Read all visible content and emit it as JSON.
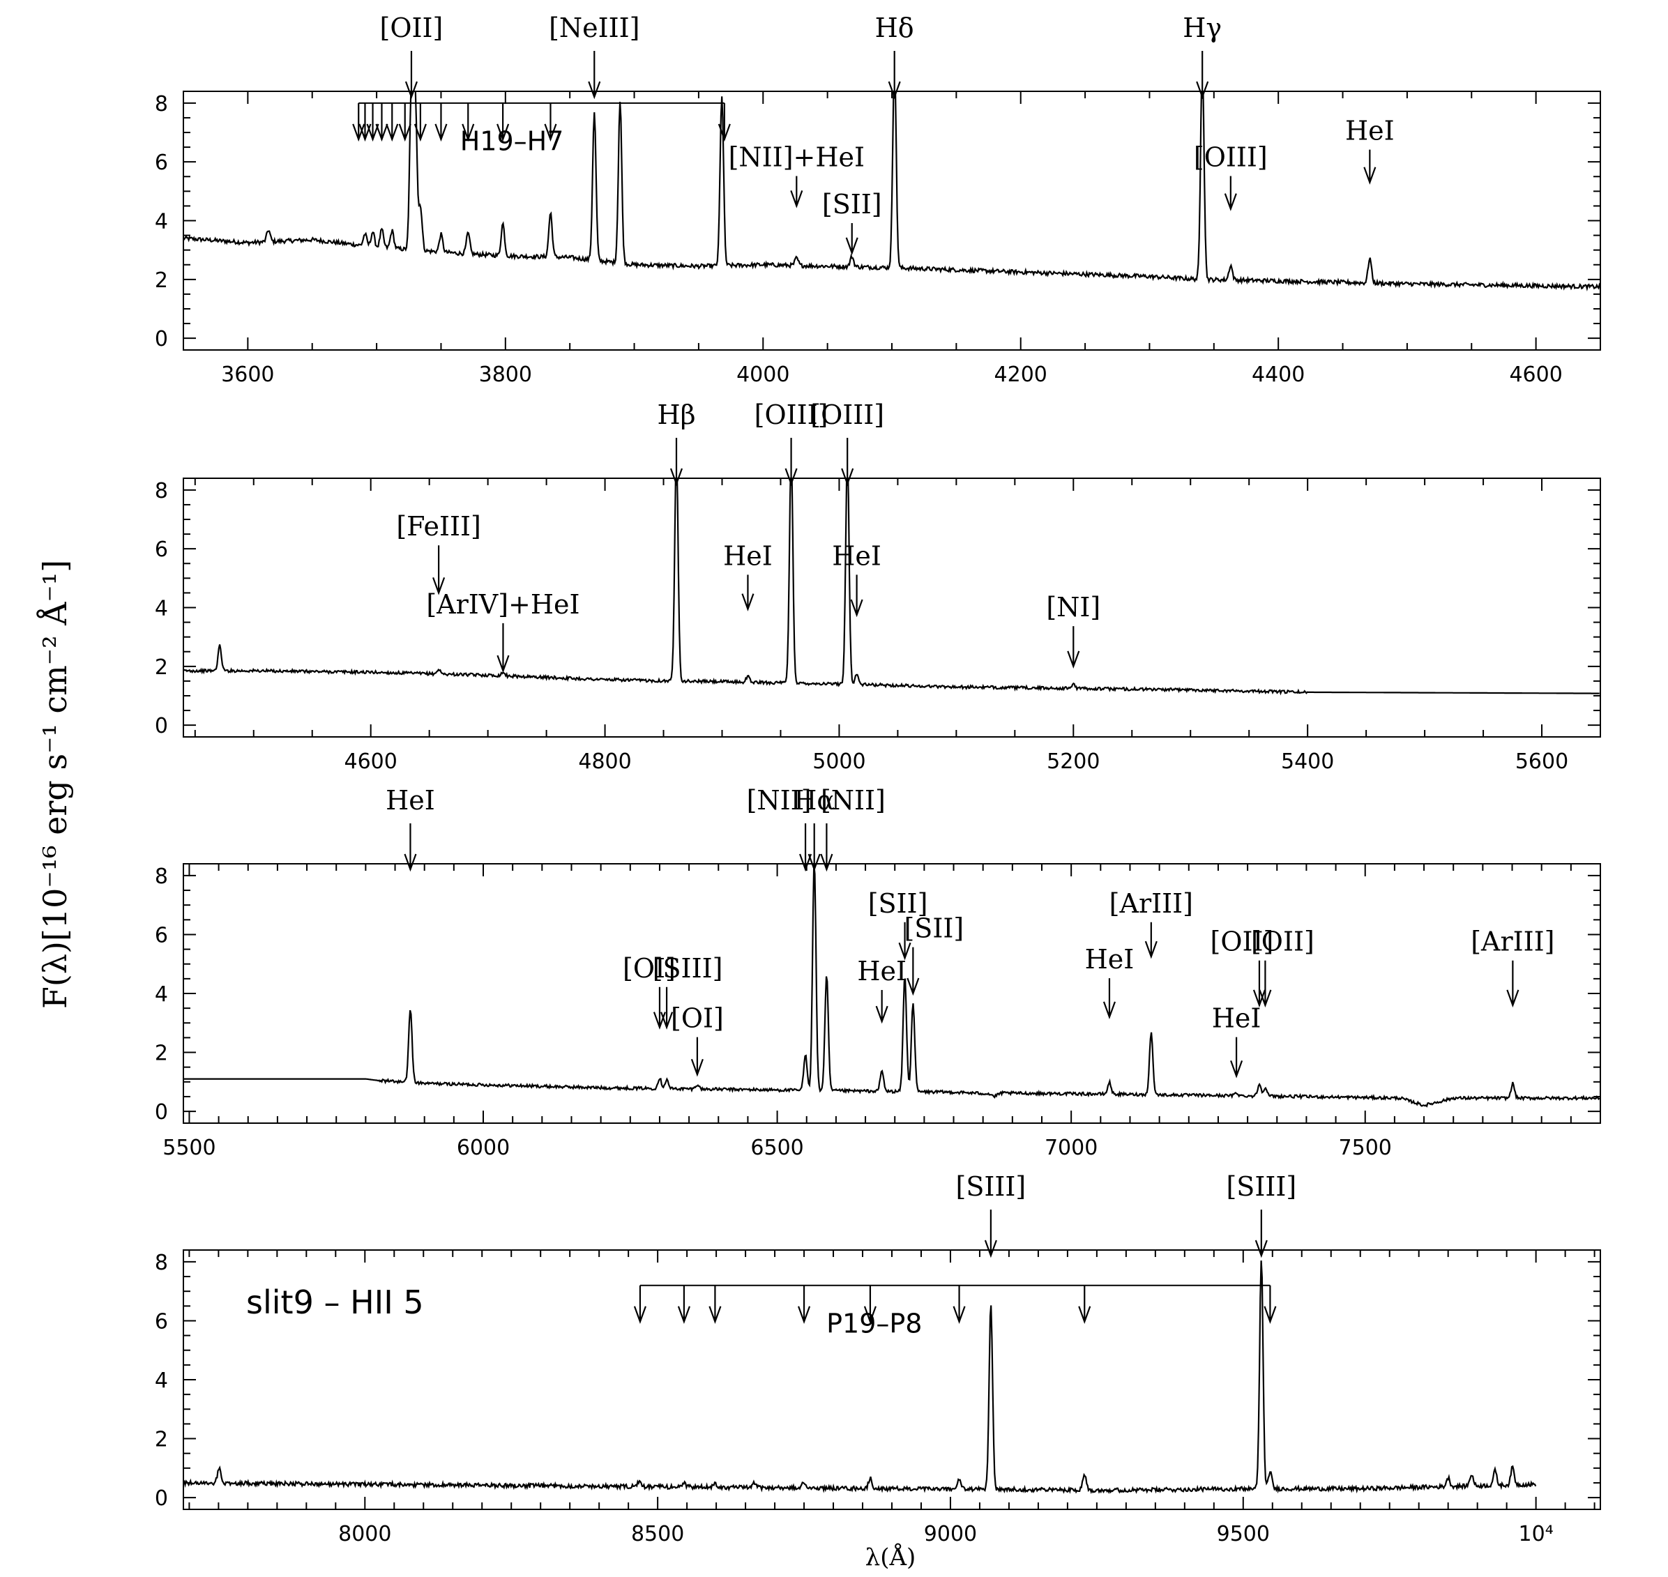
{
  "chart_data": [
    {
      "type": "line",
      "xlim": [
        3550,
        4650
      ],
      "ylim": [
        -0.4,
        8.4
      ],
      "xticks": [
        {
          "v": 3600,
          "t": "3600"
        },
        {
          "v": 3800,
          "t": "3800"
        },
        {
          "v": 4000,
          "t": "4000"
        },
        {
          "v": 4200,
          "t": "4200"
        },
        {
          "v": 4400,
          "t": "4400"
        },
        {
          "v": 4600,
          "t": "4600"
        }
      ],
      "yticks": [
        {
          "v": 0,
          "t": "0"
        },
        {
          "v": 2,
          "t": "2"
        },
        {
          "v": 4,
          "t": "4"
        },
        {
          "v": 6,
          "t": "6"
        },
        {
          "v": 8,
          "t": "8"
        }
      ],
      "continuum": [
        [
          3550,
          3.4
        ],
        [
          3600,
          3.25
        ],
        [
          3650,
          3.35
        ],
        [
          3700,
          3.1
        ],
        [
          3760,
          2.9
        ],
        [
          3800,
          2.8
        ],
        [
          3850,
          2.75
        ],
        [
          3900,
          2.5
        ],
        [
          3950,
          2.45
        ],
        [
          4000,
          2.5
        ],
        [
          4050,
          2.45
        ],
        [
          4100,
          2.4
        ],
        [
          4200,
          2.25
        ],
        [
          4300,
          2.1
        ],
        [
          4340,
          2.0
        ],
        [
          4400,
          1.95
        ],
        [
          4500,
          1.85
        ],
        [
          4650,
          1.75
        ]
      ],
      "emission_lines": [
        [
          3616,
          0.4
        ],
        [
          3691,
          0.4
        ],
        [
          3697,
          0.5
        ],
        [
          3704,
          0.6
        ],
        [
          3712,
          0.6
        ],
        [
          3727,
          5.5
        ],
        [
          3730,
          5.2
        ],
        [
          3734,
          1.5
        ],
        [
          3750,
          0.6
        ],
        [
          3771,
          0.7
        ],
        [
          3798,
          1.1
        ],
        [
          3835,
          1.5
        ],
        [
          3869,
          5.0
        ],
        [
          3889,
          5.5
        ],
        [
          3968,
          5.8
        ],
        [
          4026,
          0.25
        ],
        [
          4069,
          0.35
        ],
        [
          4102,
          7.0
        ],
        [
          4341,
          7.5
        ],
        [
          4363,
          0.5
        ],
        [
          4471,
          0.85
        ]
      ],
      "labels": [
        {
          "x": 3727,
          "text": "[OII]",
          "type": "top"
        },
        {
          "x": 3869,
          "text": "[NeIII]",
          "type": "top"
        },
        {
          "x": 4102,
          "text": "Hδ",
          "type": "top"
        },
        {
          "x": 4341,
          "text": "Hγ",
          "type": "top"
        },
        {
          "x": 4026,
          "text": "[NII]+HeI",
          "type": "inner",
          "y_label": 5.85,
          "y_tip": 4.5
        },
        {
          "x": 4069,
          "text": "[SII]",
          "type": "inner",
          "y_label": 4.25,
          "y_tip": 2.9
        },
        {
          "x": 4363,
          "text": "[OIII]",
          "type": "inner",
          "y_label": 5.85,
          "y_tip": 4.4
        },
        {
          "x": 4471,
          "text": "HeI",
          "type": "inner",
          "y_label": 6.75,
          "y_tip": 5.3
        }
      ],
      "series_bracket": {
        "label": "H19–H7",
        "y": 8.0,
        "label_x": 3805,
        "label_y": 6.4,
        "members": [
          3686,
          3691,
          3697,
          3704,
          3712,
          3722,
          3734,
          3750,
          3771,
          3798,
          3835,
          3970
        ]
      }
    },
    {
      "type": "line",
      "xlim": [
        4440,
        5650
      ],
      "ylim": [
        -0.4,
        8.4
      ],
      "xticks": [
        {
          "v": 4600,
          "t": "4600"
        },
        {
          "v": 4800,
          "t": "4800"
        },
        {
          "v": 5000,
          "t": "5000"
        },
        {
          "v": 5200,
          "t": "5200"
        },
        {
          "v": 5400,
          "t": "5400"
        },
        {
          "v": 5600,
          "t": "5600"
        }
      ],
      "yticks": [
        {
          "v": 0,
          "t": "0"
        },
        {
          "v": 2,
          "t": "2"
        },
        {
          "v": 4,
          "t": "4"
        },
        {
          "v": 6,
          "t": "6"
        },
        {
          "v": 8,
          "t": "8"
        }
      ],
      "continuum": [
        [
          4440,
          1.85
        ],
        [
          4500,
          1.85
        ],
        [
          4600,
          1.8
        ],
        [
          4700,
          1.7
        ],
        [
          4800,
          1.55
        ],
        [
          4860,
          1.5
        ],
        [
          4900,
          1.48
        ],
        [
          5000,
          1.4
        ],
        [
          5100,
          1.3
        ],
        [
          5200,
          1.25
        ],
        [
          5300,
          1.2
        ],
        [
          5400,
          1.12
        ],
        [
          5401,
          1.12
        ],
        [
          5650,
          1.08
        ]
      ],
      "emission_lines": [
        [
          4471,
          0.85
        ],
        [
          4658,
          0.15
        ],
        [
          4713,
          0.12
        ],
        [
          4861,
          7.8
        ],
        [
          4922,
          0.2
        ],
        [
          4959,
          7.8
        ],
        [
          5007,
          7.8
        ],
        [
          5015,
          0.35
        ],
        [
          5200,
          0.15
        ]
      ],
      "labels": [
        {
          "x": 4861,
          "text": "Hβ",
          "type": "top"
        },
        {
          "x": 4959,
          "text": "[OIII]",
          "type": "top"
        },
        {
          "x": 5007,
          "text": "[OIII]",
          "type": "top"
        },
        {
          "x": 4658,
          "text": "[FeIII]",
          "type": "inner",
          "y_label": 6.45,
          "y_tip": 4.5
        },
        {
          "x": 4713,
          "text": "[ArIV]+HeI",
          "type": "inner",
          "y_label": 3.8,
          "y_tip": 1.85
        },
        {
          "x": 4922,
          "text": "HeI",
          "type": "inner",
          "y_label": 5.45,
          "y_tip": 3.95
        },
        {
          "x": 5015,
          "text": "HeI",
          "type": "inner",
          "y_label": 5.45,
          "y_tip": 3.75
        },
        {
          "x": 5200,
          "text": "[NI]",
          "type": "inner",
          "y_label": 3.7,
          "y_tip": 2.0
        }
      ]
    },
    {
      "type": "line",
      "xlim": [
        5490,
        7900
      ],
      "ylim": [
        -0.4,
        8.4
      ],
      "xticks": [
        {
          "v": 5500,
          "t": "5500"
        },
        {
          "v": 6000,
          "t": "6000"
        },
        {
          "v": 6500,
          "t": "6500"
        },
        {
          "v": 7000,
          "t": "7000"
        },
        {
          "v": 7500,
          "t": "7500"
        }
      ],
      "yticks": [
        {
          "v": 0,
          "t": "0"
        },
        {
          "v": 2,
          "t": "2"
        },
        {
          "v": 4,
          "t": "4"
        },
        {
          "v": 6,
          "t": "6"
        },
        {
          "v": 8,
          "t": "8"
        }
      ],
      "continuum": [
        [
          5490,
          1.1
        ],
        [
          5800,
          1.1
        ],
        [
          5820,
          1.05
        ],
        [
          5900,
          0.95
        ],
        [
          6000,
          0.9
        ],
        [
          6200,
          0.8
        ],
        [
          6400,
          0.75
        ],
        [
          6600,
          0.7
        ],
        [
          6800,
          0.65
        ],
        [
          6860,
          0.6
        ],
        [
          6870,
          0.5
        ],
        [
          6880,
          0.62
        ],
        [
          7000,
          0.6
        ],
        [
          7200,
          0.55
        ],
        [
          7400,
          0.5
        ],
        [
          7560,
          0.45
        ],
        [
          7600,
          0.2
        ],
        [
          7620,
          0.3
        ],
        [
          7650,
          0.45
        ],
        [
          7900,
          0.45
        ]
      ],
      "emission_lines": [
        [
          5876,
          2.5
        ],
        [
          6300,
          0.35
        ],
        [
          6312,
          0.3
        ],
        [
          6364,
          0.15
        ],
        [
          6548,
          1.2
        ],
        [
          6563,
          7.8
        ],
        [
          6584,
          3.9
        ],
        [
          6678,
          0.7
        ],
        [
          6717,
          3.9
        ],
        [
          6731,
          3.0
        ],
        [
          7065,
          0.4
        ],
        [
          7136,
          2.1
        ],
        [
          7281,
          0.1
        ],
        [
          7320,
          0.4
        ],
        [
          7330,
          0.3
        ],
        [
          7751,
          0.5
        ]
      ],
      "labels": [
        {
          "x": 5876,
          "text": "HeI",
          "type": "top"
        },
        {
          "x": 6548,
          "text": "[NII]",
          "type": "top",
          "dx": -38
        },
        {
          "x": 6563,
          "text": "Hα",
          "type": "top"
        },
        {
          "x": 6584,
          "text": "[NII]",
          "type": "top",
          "dx": 38
        },
        {
          "x": 6300,
          "text": "[OI]",
          "type": "inner",
          "y_label": 4.55,
          "y_tip": 2.85,
          "dx": -15
        },
        {
          "x": 6312,
          "text": "[SIII]",
          "type": "inner",
          "y_label": 4.55,
          "y_tip": 2.85,
          "dx": 30
        },
        {
          "x": 6364,
          "text": "[OI]",
          "type": "inner",
          "y_label": 2.85,
          "y_tip": 1.25
        },
        {
          "x": 6678,
          "text": "HeI",
          "type": "inner",
          "y_label": 4.45,
          "y_tip": 3.05
        },
        {
          "x": 6717,
          "text": "[SII]",
          "type": "inner",
          "y_label": 6.75,
          "y_tip": 5.2,
          "dx": -10
        },
        {
          "x": 6731,
          "text": "[SII]",
          "type": "inner",
          "y_label": 5.9,
          "y_tip": 4.0,
          "dx": 30
        },
        {
          "x": 7065,
          "text": "HeI",
          "type": "inner",
          "y_label": 4.85,
          "y_tip": 3.2
        },
        {
          "x": 7136,
          "text": "[ArIII]",
          "type": "inner",
          "y_label": 6.75,
          "y_tip": 5.25
        },
        {
          "x": 7281,
          "text": "HeI",
          "type": "inner",
          "y_label": 2.85,
          "y_tip": 1.2
        },
        {
          "x": 7320,
          "text": "[OII]",
          "type": "inner",
          "y_label": 5.45,
          "y_tip": 3.6,
          "dx": -25
        },
        {
          "x": 7330,
          "text": "[OII]",
          "type": "inner",
          "y_label": 5.45,
          "y_tip": 3.6,
          "dx": 25
        },
        {
          "x": 7751,
          "text": "[ArIII]",
          "type": "inner",
          "y_label": 5.45,
          "y_tip": 3.6
        }
      ]
    },
    {
      "type": "line",
      "xlim": [
        7690,
        10110
      ],
      "ylim": [
        -0.4,
        8.4
      ],
      "xticks": [
        {
          "v": 8000,
          "t": "8000"
        },
        {
          "v": 8500,
          "t": "8500"
        },
        {
          "v": 9000,
          "t": "9000"
        },
        {
          "v": 9500,
          "t": "9500"
        },
        {
          "v": 10000,
          "t": "10⁴"
        }
      ],
      "yticks": [
        {
          "v": 0,
          "t": "0"
        },
        {
          "v": 2,
          "t": "2"
        },
        {
          "v": 4,
          "t": "4"
        },
        {
          "v": 6,
          "t": "6"
        },
        {
          "v": 8,
          "t": "8"
        }
      ],
      "continuum": [
        [
          7700,
          0.5
        ],
        [
          8000,
          0.45
        ],
        [
          8300,
          0.4
        ],
        [
          8600,
          0.35
        ],
        [
          8900,
          0.3
        ],
        [
          9300,
          0.25
        ],
        [
          9500,
          0.3
        ],
        [
          9700,
          0.3
        ],
        [
          9900,
          0.4
        ],
        [
          10000,
          0.45
        ]
      ],
      "data_end": 10000,
      "emission_lines": [
        [
          7751,
          0.5
        ],
        [
          8468,
          0.15
        ],
        [
          8545,
          0.15
        ],
        [
          8598,
          0.15
        ],
        [
          8665,
          0.15
        ],
        [
          8750,
          0.2
        ],
        [
          8863,
          0.35
        ],
        [
          9015,
          0.35
        ],
        [
          9069,
          6.3
        ],
        [
          9229,
          0.55
        ],
        [
          9531,
          7.8
        ],
        [
          9546,
          0.6
        ],
        [
          9850,
          0.3
        ],
        [
          9890,
          0.4
        ],
        [
          9930,
          0.5
        ],
        [
          9960,
          0.6
        ]
      ],
      "labels": [
        {
          "x": 9069,
          "text": "[SIII]",
          "type": "top"
        },
        {
          "x": 9531,
          "text": "[SIII]",
          "type": "top"
        }
      ],
      "series_bracket": {
        "label": "P19–P8",
        "y": 7.2,
        "label_x": 8870,
        "label_y": 5.6,
        "members": [
          8470,
          8545,
          8598,
          8750,
          8863,
          9015,
          9229,
          9546
        ]
      },
      "panel_label": "slit9 – HII 5"
    }
  ],
  "axes": {
    "ylabel": "F(λ)[10⁻¹⁶ erg s⁻¹ cm⁻² Å⁻¹]",
    "xlabel": "λ(Å)"
  }
}
